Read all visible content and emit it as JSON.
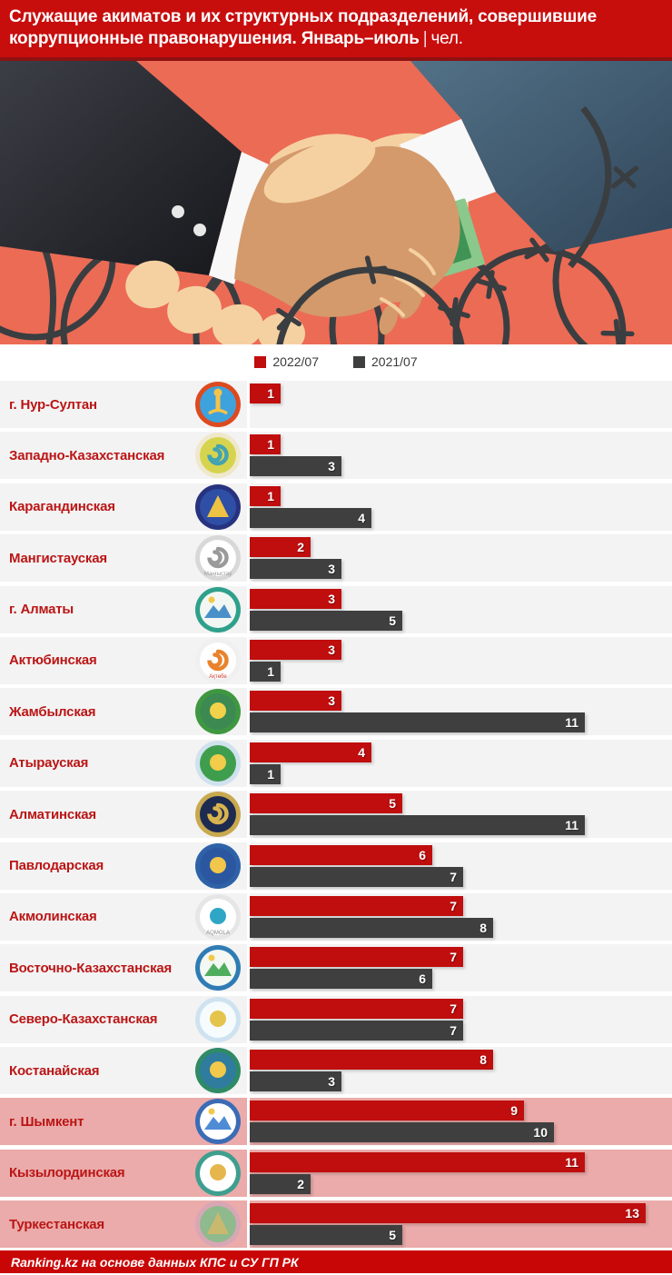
{
  "title": {
    "line1": "Служащие акиматов и их структурных подразделений, совершившие",
    "line2": "коррупционные правонарушения. Январь–июль",
    "sep": "|",
    "unit": "чел."
  },
  "legend": [
    {
      "label": "2022/07",
      "color": "#c00d0d"
    },
    {
      "label": "2021/07",
      "color": "#3f3f3f"
    }
  ],
  "footer": {
    "source": "Ranking.kz на основе данных КПС и СУ ГП РК"
  },
  "colors": {
    "bar_2022": "#c00d0d",
    "bar_2021": "#3f3f3f",
    "row_gray": "#f3f3f3",
    "row_pink": "#eaabaa",
    "label_red": "#bb1515",
    "title_bg": "#c80d0d",
    "footer_bg": "#c90606",
    "illustration_bg": "#ec6b55"
  },
  "chart_data": {
    "type": "bar",
    "orientation": "horizontal",
    "title": "Служащие акиматов и их структурных подразделений, совершившие коррупционные правонарушения. Январь–июль | чел.",
    "categories": [
      "г. Нур-Султан",
      "Западно-Казахстанская",
      "Карагандинская",
      "Мангистауская",
      "г. Алматы",
      "Актюбинская",
      "Жамбылская",
      "Атырауская",
      "Алматинская",
      "Павлодарская",
      "Акмолинская",
      "Восточно-Казахстанская",
      "Северо-Казахстанская",
      "Костанайская",
      "г. Шымкент",
      "Кызылординская",
      "Туркестанская"
    ],
    "series": [
      {
        "name": "2022/07",
        "values": [
          1,
          1,
          1,
          2,
          3,
          3,
          3,
          4,
          5,
          6,
          7,
          7,
          7,
          8,
          9,
          11,
          13
        ]
      },
      {
        "name": "2021/07",
        "values": [
          0,
          3,
          4,
          3,
          5,
          1,
          11,
          1,
          11,
          7,
          8,
          6,
          7,
          3,
          10,
          2,
          5
        ]
      }
    ],
    "xlim": [
      0,
      13
    ],
    "legend_position": "top",
    "grid": false,
    "highlighted_categories": [
      "г. Шымкент",
      "Кызылординская",
      "Туркестанская"
    ]
  },
  "rows": [
    {
      "region": "г. Нур-Султан",
      "slug": "nur-sultan",
      "v2022": 1,
      "v2021": 0,
      "highlighted": false,
      "emblem": {
        "ring": "#dd4a1f",
        "fill": "#3ea2dc",
        "accent": "#f4c34a",
        "shape": "tower"
      }
    },
    {
      "region": "Западно-Казахстанская",
      "slug": "zko",
      "v2022": 1,
      "v2021": 3,
      "highlighted": false,
      "emblem": {
        "ring": "#efe8cc",
        "fill": "#d6d44e",
        "accent": "#43a3b0",
        "shape": "swirl"
      }
    },
    {
      "region": "Карагандинская",
      "slug": "karaganda",
      "v2022": 1,
      "v2021": 4,
      "highlighted": false,
      "emblem": {
        "ring": "#27337f",
        "fill": "#2e4fa5",
        "accent": "#eec243",
        "shape": "triangle"
      }
    },
    {
      "region": "Мангистауская",
      "slug": "mangystau",
      "v2022": 2,
      "v2021": 3,
      "highlighted": false,
      "emblem": {
        "ring": "#d8d8d8",
        "fill": "#ffffff",
        "accent": "#9a9a9a",
        "shape": "swirl",
        "caption": "Маңғыстау",
        "captionColor": "#9a9a9a"
      }
    },
    {
      "region": "г. Алматы",
      "slug": "almaty-city",
      "v2022": 3,
      "v2021": 5,
      "highlighted": false,
      "emblem": {
        "ring": "#2fa08b",
        "fill": "#f2f7f3",
        "accent": "#4a90c8",
        "shape": "mountain"
      }
    },
    {
      "region": "Актюбинская",
      "slug": "aktobe",
      "v2022": 3,
      "v2021": 1,
      "highlighted": false,
      "emblem": {
        "ring": "#f0f0f0",
        "fill": "#ffffff",
        "accent": "#e9822b",
        "shape": "swirl",
        "caption": "Ақтөбе",
        "captionColor": "#d23b2e"
      }
    },
    {
      "region": "Жамбылская",
      "slug": "zhambyl",
      "v2022": 3,
      "v2021": 11,
      "highlighted": false,
      "emblem": {
        "ring": "#3f9840",
        "fill": "#3c8a52",
        "accent": "#f2d24b",
        "shape": "dot"
      }
    },
    {
      "region": "Атырауская",
      "slug": "atyrau",
      "v2022": 4,
      "v2021": 1,
      "highlighted": false,
      "emblem": {
        "ring": "#cfe2ee",
        "fill": "#3f9e4e",
        "accent": "#f2cc4a",
        "shape": "dot"
      }
    },
    {
      "region": "Алматинская",
      "slug": "almaty-region",
      "v2022": 5,
      "v2021": 11,
      "highlighted": false,
      "emblem": {
        "ring": "#c9a94f",
        "fill": "#1e2b50",
        "accent": "#d8b44e",
        "shape": "swirl"
      }
    },
    {
      "region": "Павлодарская",
      "slug": "pavlodar",
      "v2022": 6,
      "v2021": 7,
      "highlighted": false,
      "emblem": {
        "ring": "#2e62a8",
        "fill": "#2b57a0",
        "accent": "#f1c64a",
        "shape": "dot"
      }
    },
    {
      "region": "Акмолинская",
      "slug": "akmola",
      "v2022": 7,
      "v2021": 8,
      "highlighted": false,
      "emblem": {
        "ring": "#e6e6e6",
        "fill": "#ffffff",
        "accent": "#2fa6c6",
        "shape": "dot",
        "caption": "AQMOLA",
        "captionColor": "#8a8a8a"
      }
    },
    {
      "region": "Восточно-Казахстанская",
      "slug": "vko",
      "v2022": 7,
      "v2021": 6,
      "highlighted": false,
      "emblem": {
        "ring": "#2f7cb5",
        "fill": "#f3f8f3",
        "accent": "#4fae5e",
        "shape": "mountain"
      }
    },
    {
      "region": "Северо-Казахстанская",
      "slug": "sko",
      "v2022": 7,
      "v2021": 7,
      "highlighted": false,
      "emblem": {
        "ring": "#cfe2f0",
        "fill": "#f6fbfe",
        "accent": "#e5c44c",
        "shape": "dot"
      }
    },
    {
      "region": "Костанайская",
      "slug": "kostanay",
      "v2022": 8,
      "v2021": 3,
      "highlighted": false,
      "emblem": {
        "ring": "#2f8a66",
        "fill": "#2f7c9e",
        "accent": "#f2c94b",
        "shape": "dot"
      }
    },
    {
      "region": "г. Шымкент",
      "slug": "shymkent",
      "v2022": 9,
      "v2021": 10,
      "highlighted": true,
      "emblem": {
        "ring": "#3b6cb5",
        "fill": "#ffffff",
        "accent": "#4f8cd6",
        "shape": "mountain"
      }
    },
    {
      "region": "Кызылординская",
      "slug": "kyzylorda",
      "v2022": 11,
      "v2021": 2,
      "highlighted": true,
      "emblem": {
        "ring": "#3f9e8e",
        "fill": "#ffffff",
        "accent": "#e6b64e",
        "shape": "dot"
      }
    },
    {
      "region": "Туркестанская",
      "slug": "turkestan",
      "v2022": 13,
      "v2021": 5,
      "highlighted": true,
      "emblem": {
        "ring": "#d8a7b5",
        "fill": "#8fba8d",
        "accent": "#c9b96e",
        "shape": "triangle"
      }
    }
  ]
}
